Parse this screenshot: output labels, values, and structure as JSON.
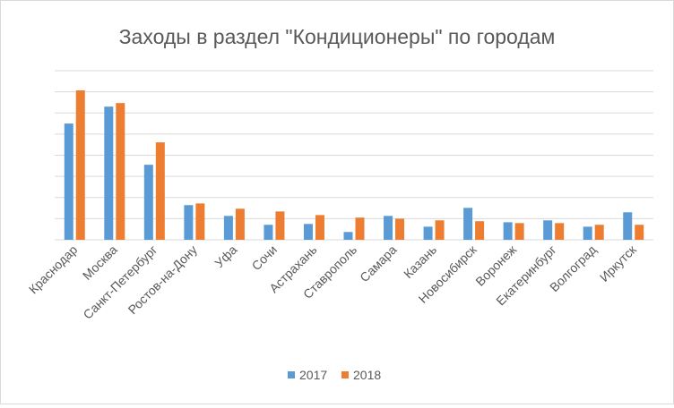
{
  "chart_data": {
    "type": "bar",
    "title": "Заходы в раздел \"Кондиционеры\" по городам",
    "xlabel": "",
    "ylabel": "",
    "ylim": [
      0,
      8
    ],
    "grid": true,
    "legend_position": "bottom",
    "categories": [
      "Краснодар",
      "Москва",
      "Санкт-Петербург",
      "Ростов-на-Дону",
      "Уфа",
      "Сочи",
      "Астрахань",
      "Ставрополь",
      "Самара",
      "Казань",
      "Новосибирск",
      "Воронеж",
      "Екатеринбург",
      "Волгоград",
      "Иркутск"
    ],
    "series": [
      {
        "name": "2017",
        "color": "#5b9bd5",
        "values": [
          5.5,
          6.3,
          3.55,
          1.64,
          1.13,
          0.71,
          0.75,
          0.37,
          1.13,
          0.62,
          1.51,
          0.83,
          0.92,
          0.62,
          1.3
        ]
      },
      {
        "name": "2018",
        "color": "#ed7d31",
        "values": [
          7.07,
          6.47,
          4.61,
          1.72,
          1.47,
          1.34,
          1.17,
          1.05,
          1.0,
          0.92,
          0.88,
          0.79,
          0.79,
          0.71,
          0.71
        ]
      }
    ]
  }
}
